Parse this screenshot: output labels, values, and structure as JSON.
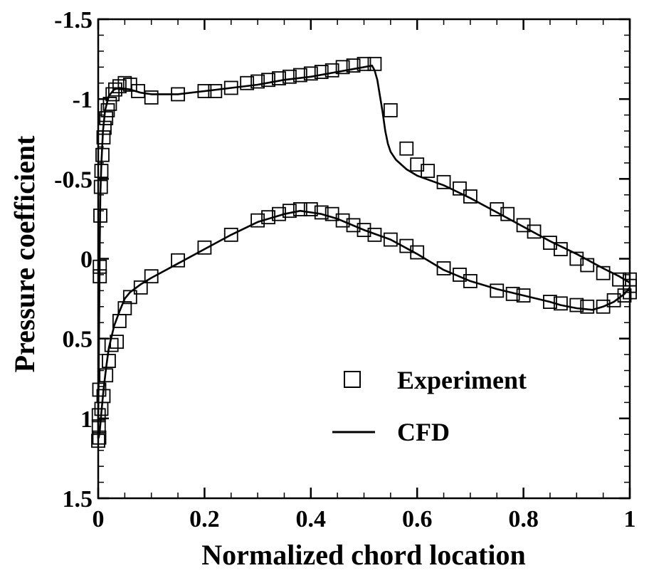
{
  "chart_data": {
    "type": "line",
    "title": "",
    "xlabel": "Normalized chord location",
    "ylabel": "Pressure coefficient",
    "xlim": [
      0,
      1
    ],
    "ylim": [
      -1.5,
      1.5
    ],
    "y_inverted": true,
    "grid": false,
    "legend_position": "bottom-right",
    "x_ticks": [
      {
        "value": 0,
        "label": "0"
      },
      {
        "value": 0.2,
        "label": "0.2"
      },
      {
        "value": 0.4,
        "label": "0.4"
      },
      {
        "value": 0.6,
        "label": "0.6"
      },
      {
        "value": 0.8,
        "label": "0.8"
      },
      {
        "value": 1,
        "label": "1"
      }
    ],
    "y_ticks": [
      {
        "value": -1.5,
        "label": "-1.5"
      },
      {
        "value": -1,
        "label": "-1"
      },
      {
        "value": -0.5,
        "label": "-0.5"
      },
      {
        "value": 0,
        "label": "0"
      },
      {
        "value": 0.5,
        "label": "0.5"
      },
      {
        "value": 1,
        "label": "1"
      },
      {
        "value": 1.5,
        "label": "1.5"
      }
    ],
    "x_minor_step": 0.05,
    "y_minor_step": 0.1,
    "series": [
      {
        "name": "Experiment",
        "kind": "scatter",
        "marker": "open-square",
        "color": "#000000",
        "points": [
          [
            0.0,
            1.14
          ],
          [
            0.001,
            1.05
          ],
          [
            0.002,
            0.82
          ],
          [
            0.003,
            0.05
          ],
          [
            0.004,
            -0.27
          ],
          [
            0.005,
            -0.45
          ],
          [
            0.006,
            -0.55
          ],
          [
            0.008,
            -0.65
          ],
          [
            0.01,
            -0.76
          ],
          [
            0.012,
            -0.82
          ],
          [
            0.015,
            -0.88
          ],
          [
            0.018,
            -0.93
          ],
          [
            0.022,
            -0.97
          ],
          [
            0.027,
            -1.03
          ],
          [
            0.032,
            -1.06
          ],
          [
            0.04,
            -1.08
          ],
          [
            0.05,
            -1.1
          ],
          [
            0.06,
            -1.09
          ],
          [
            0.075,
            -1.05
          ],
          [
            0.1,
            -1.01
          ],
          [
            0.15,
            -1.03
          ],
          [
            0.2,
            -1.05
          ],
          [
            0.22,
            -1.05
          ],
          [
            0.25,
            -1.07
          ],
          [
            0.28,
            -1.1
          ],
          [
            0.3,
            -1.11
          ],
          [
            0.32,
            -1.12
          ],
          [
            0.34,
            -1.13
          ],
          [
            0.36,
            -1.14
          ],
          [
            0.38,
            -1.15
          ],
          [
            0.4,
            -1.16
          ],
          [
            0.42,
            -1.17
          ],
          [
            0.44,
            -1.18
          ],
          [
            0.46,
            -1.2
          ],
          [
            0.48,
            -1.21
          ],
          [
            0.5,
            -1.22
          ],
          [
            0.52,
            -1.22
          ],
          [
            0.55,
            -0.93
          ],
          [
            0.58,
            -0.69
          ],
          [
            0.6,
            -0.59
          ],
          [
            0.62,
            -0.55
          ],
          [
            0.65,
            -0.48
          ],
          [
            0.68,
            -0.44
          ],
          [
            0.7,
            -0.39
          ],
          [
            0.75,
            -0.31
          ],
          [
            0.77,
            -0.28
          ],
          [
            0.8,
            -0.21
          ],
          [
            0.82,
            -0.17
          ],
          [
            0.85,
            -0.1
          ],
          [
            0.87,
            -0.06
          ],
          [
            0.9,
            0.0
          ],
          [
            0.92,
            0.04
          ],
          [
            0.95,
            0.09
          ],
          [
            0.98,
            0.13
          ],
          [
            1.0,
            0.13
          ],
          [
            1.0,
            0.21
          ],
          [
            0.001,
            0.98
          ],
          [
            0.002,
            1.12
          ],
          [
            0.003,
            0.11
          ],
          [
            0.006,
            0.94
          ],
          [
            0.01,
            0.86
          ],
          [
            0.015,
            0.73
          ],
          [
            0.02,
            0.64
          ],
          [
            0.025,
            0.54
          ],
          [
            0.035,
            0.52
          ],
          [
            0.04,
            0.39
          ],
          [
            0.05,
            0.31
          ],
          [
            0.06,
            0.24
          ],
          [
            0.08,
            0.18
          ],
          [
            0.1,
            0.11
          ],
          [
            0.15,
            0.01
          ],
          [
            0.2,
            -0.07
          ],
          [
            0.25,
            -0.15
          ],
          [
            0.3,
            -0.24
          ],
          [
            0.32,
            -0.26
          ],
          [
            0.34,
            -0.28
          ],
          [
            0.36,
            -0.3
          ],
          [
            0.38,
            -0.31
          ],
          [
            0.4,
            -0.31
          ],
          [
            0.42,
            -0.29
          ],
          [
            0.44,
            -0.28
          ],
          [
            0.46,
            -0.24
          ],
          [
            0.48,
            -0.21
          ],
          [
            0.5,
            -0.18
          ],
          [
            0.52,
            -0.15
          ],
          [
            0.55,
            -0.12
          ],
          [
            0.58,
            -0.08
          ],
          [
            0.6,
            -0.04
          ],
          [
            0.65,
            0.06
          ],
          [
            0.68,
            0.1
          ],
          [
            0.7,
            0.14
          ],
          [
            0.75,
            0.2
          ],
          [
            0.78,
            0.22
          ],
          [
            0.8,
            0.23
          ],
          [
            0.85,
            0.27
          ],
          [
            0.87,
            0.28
          ],
          [
            0.9,
            0.29
          ],
          [
            0.92,
            0.3
          ],
          [
            0.95,
            0.3
          ],
          [
            0.97,
            0.26
          ],
          [
            0.99,
            0.23
          ],
          [
            1.0,
            0.17
          ]
        ]
      },
      {
        "name": "CFD",
        "kind": "line",
        "color": "#000000",
        "segments": [
          [
            [
              1.0,
              0.18
            ],
            [
              0.99,
              0.22
            ],
            [
              0.97,
              0.27
            ],
            [
              0.95,
              0.3
            ],
            [
              0.93,
              0.32
            ],
            [
              0.9,
              0.31
            ],
            [
              0.87,
              0.29
            ],
            [
              0.85,
              0.27
            ],
            [
              0.8,
              0.23
            ],
            [
              0.75,
              0.19
            ],
            [
              0.7,
              0.14
            ],
            [
              0.65,
              0.07
            ],
            [
              0.6,
              -0.03
            ],
            [
              0.55,
              -0.12
            ],
            [
              0.5,
              -0.18
            ],
            [
              0.45,
              -0.25
            ],
            [
              0.42,
              -0.28
            ],
            [
              0.4,
              -0.29
            ],
            [
              0.38,
              -0.3
            ],
            [
              0.35,
              -0.28
            ],
            [
              0.3,
              -0.23
            ],
            [
              0.25,
              -0.15
            ],
            [
              0.2,
              -0.06
            ],
            [
              0.15,
              0.03
            ],
            [
              0.1,
              0.12
            ],
            [
              0.08,
              0.16
            ],
            [
              0.06,
              0.21
            ],
            [
              0.05,
              0.25
            ],
            [
              0.04,
              0.33
            ],
            [
              0.03,
              0.42
            ],
            [
              0.02,
              0.56
            ],
            [
              0.015,
              0.68
            ],
            [
              0.01,
              0.82
            ],
            [
              0.006,
              0.96
            ],
            [
              0.003,
              1.08
            ],
            [
              0.001,
              1.12
            ],
            [
              0.0,
              1.12
            ],
            [
              0.0,
              1.0
            ],
            [
              0.001,
              0.7
            ],
            [
              0.002,
              0.3
            ],
            [
              0.003,
              -0.1
            ],
            [
              0.004,
              -0.4
            ],
            [
              0.006,
              -0.6
            ],
            [
              0.009,
              -0.8
            ],
            [
              0.013,
              -0.93
            ],
            [
              0.02,
              -1.02
            ],
            [
              0.03,
              -1.06
            ],
            [
              0.04,
              -1.07
            ],
            [
              0.06,
              -1.06
            ],
            [
              0.08,
              -1.04
            ],
            [
              0.1,
              -1.03
            ],
            [
              0.15,
              -1.03
            ],
            [
              0.2,
              -1.05
            ],
            [
              0.25,
              -1.07
            ],
            [
              0.3,
              -1.09
            ],
            [
              0.35,
              -1.12
            ],
            [
              0.4,
              -1.14
            ],
            [
              0.45,
              -1.17
            ],
            [
              0.5,
              -1.2
            ],
            [
              0.515,
              -1.21
            ],
            [
              0.52,
              -1.18
            ],
            [
              0.525,
              -1.12
            ],
            [
              0.53,
              -1.02
            ],
            [
              0.535,
              -0.92
            ],
            [
              0.54,
              -0.8
            ],
            [
              0.545,
              -0.72
            ],
            [
              0.55,
              -0.67
            ],
            [
              0.56,
              -0.62
            ],
            [
              0.58,
              -0.56
            ],
            [
              0.6,
              -0.52
            ],
            [
              0.65,
              -0.46
            ],
            [
              0.7,
              -0.38
            ],
            [
              0.75,
              -0.29
            ],
            [
              0.8,
              -0.2
            ],
            [
              0.85,
              -0.11
            ],
            [
              0.9,
              -0.03
            ],
            [
              0.95,
              0.06
            ],
            [
              0.98,
              0.11
            ],
            [
              1.0,
              0.15
            ]
          ]
        ]
      }
    ]
  }
}
